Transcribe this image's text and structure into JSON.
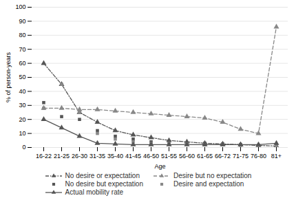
{
  "chart_data": {
    "type": "line",
    "xlabel": "Age",
    "ylabel": "% of person-years",
    "categories": [
      "16-22",
      "21-25",
      "26-30",
      "31-35",
      "35-40",
      "41-45",
      "46-50",
      "51-55",
      "56-60",
      "61-65",
      "66-72",
      "71-75",
      "76-80",
      "81+"
    ],
    "series": [
      {
        "name": "No desire or expectation",
        "color": "#555555",
        "marker": "triangle",
        "line_style": "dashdot",
        "values": [
          60,
          45,
          25,
          18,
          12,
          9,
          7,
          5,
          4,
          3,
          2.5,
          2,
          1.5,
          1
        ]
      },
      {
        "name": "Desire but no expectation",
        "color": "#888888",
        "marker": "triangle",
        "line_style": "dashed",
        "values": [
          28,
          28,
          27,
          27,
          26,
          25,
          24,
          23,
          22,
          21,
          18,
          13,
          10,
          86
        ]
      },
      {
        "name": "No desire but expectation",
        "color": "#555555",
        "marker": "square",
        "line_style": "none",
        "values": [
          32,
          22,
          20,
          12,
          8,
          6,
          4,
          3.5,
          3,
          3,
          2.5,
          2,
          1.5,
          1.5
        ]
      },
      {
        "name": "Desire and expectation",
        "color": "#888888",
        "marker": "square",
        "line_style": "none",
        "values": [
          28,
          45,
          25,
          10,
          6,
          4,
          3,
          3,
          2.5,
          2,
          2,
          1.5,
          1,
          1
        ]
      },
      {
        "name": "Actual mobility rate",
        "color": "#555555",
        "marker": "triangle",
        "line_style": "solid",
        "values": [
          20,
          14,
          8,
          3,
          2.5,
          2,
          2,
          2,
          2,
          2,
          2,
          2,
          2,
          3
        ]
      }
    ],
    "ylim": [
      0,
      100
    ],
    "yticks": [
      0,
      10,
      20,
      30,
      40,
      50,
      60,
      70,
      80,
      90,
      100
    ],
    "grid": true,
    "legend": "bottom"
  }
}
